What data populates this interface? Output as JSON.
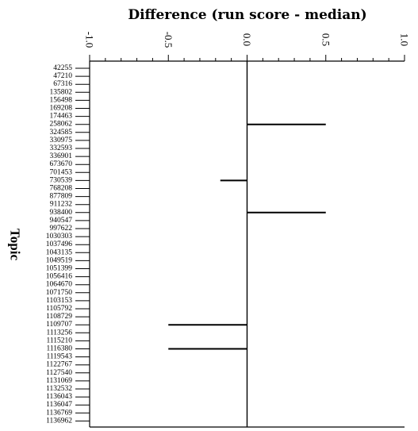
{
  "chart_data": {
    "type": "bar",
    "orientation": "horizontal",
    "title": "Difference (run score - median)",
    "ylabel": "Topic",
    "xlim": [
      -1.0,
      1.0
    ],
    "x_major_ticks": [
      -1.0,
      -0.5,
      0.0,
      0.5,
      1.0
    ],
    "x_tick_labels": [
      "-1.0",
      "-0.5",
      "0.0",
      "0.5",
      "1.0"
    ],
    "x_minor_step": 0.1,
    "grid": false,
    "categories": [
      "42255",
      "47210",
      "67316",
      "135802",
      "156498",
      "169208",
      "174463",
      "258062",
      "324585",
      "330975",
      "332593",
      "336901",
      "673670",
      "701453",
      "730539",
      "768208",
      "877809",
      "911232",
      "938400",
      "940547",
      "997622",
      "1030303",
      "1037496",
      "1043135",
      "1049519",
      "1051399",
      "1056416",
      "1064670",
      "1071750",
      "1103153",
      "1105792",
      "1108729",
      "1109707",
      "1113256",
      "1115210",
      "1116380",
      "1119543",
      "1122767",
      "1127540",
      "1131069",
      "1132532",
      "1136043",
      "1136047",
      "1136769",
      "1136962"
    ],
    "values": [
      0,
      0,
      0,
      0,
      0,
      0,
      0,
      0.5,
      0,
      0,
      0,
      0,
      0,
      0,
      -0.17,
      0,
      0,
      0,
      0.5,
      0,
      0,
      0,
      0,
      0,
      0,
      0,
      0,
      0,
      0,
      0,
      0,
      0,
      -0.5,
      0,
      0,
      -0.5,
      0,
      0,
      0,
      0,
      0,
      0,
      0,
      0,
      0
    ]
  }
}
